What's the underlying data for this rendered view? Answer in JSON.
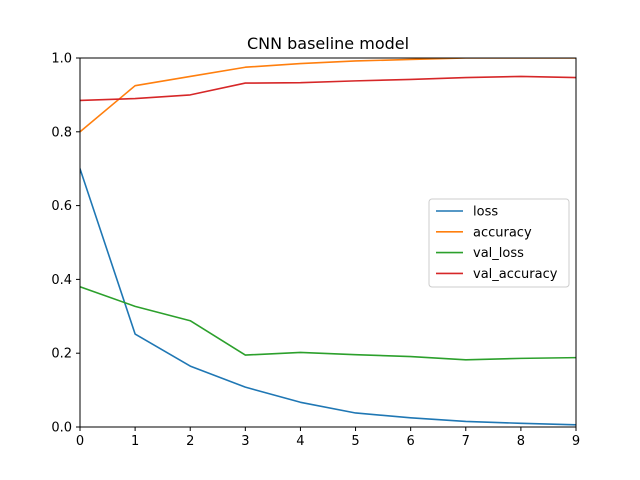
{
  "chart_data": {
    "type": "line",
    "title": "CNN baseline model",
    "xlabel": "",
    "ylabel": "",
    "x": [
      0,
      1,
      2,
      3,
      4,
      5,
      6,
      7,
      8,
      9
    ],
    "xlim": [
      0,
      9
    ],
    "ylim": [
      0.0,
      1.0
    ],
    "xticks": [
      "0",
      "1",
      "2",
      "3",
      "4",
      "5",
      "6",
      "7",
      "8",
      "9"
    ],
    "yticks": [
      "0.0",
      "0.2",
      "0.4",
      "0.6",
      "0.8",
      "1.0"
    ],
    "grid": false,
    "legend_position": "center-right",
    "series": [
      {
        "name": "loss",
        "color": "#1f77b4",
        "values": [
          0.7,
          0.252,
          0.165,
          0.108,
          0.067,
          0.038,
          0.025,
          0.015,
          0.01,
          0.006
        ]
      },
      {
        "name": "accuracy",
        "color": "#ff7f0e",
        "values": [
          0.8,
          0.925,
          0.95,
          0.975,
          0.985,
          0.992,
          0.996,
          1.0,
          1.0,
          1.0
        ]
      },
      {
        "name": "val_loss",
        "color": "#2ca02c",
        "values": [
          0.38,
          0.327,
          0.288,
          0.195,
          0.202,
          0.196,
          0.191,
          0.182,
          0.186,
          0.188
        ]
      },
      {
        "name": "val_accuracy",
        "color": "#d62728",
        "values": [
          0.885,
          0.89,
          0.9,
          0.932,
          0.933,
          0.938,
          0.942,
          0.947,
          0.95,
          0.947
        ]
      }
    ]
  }
}
